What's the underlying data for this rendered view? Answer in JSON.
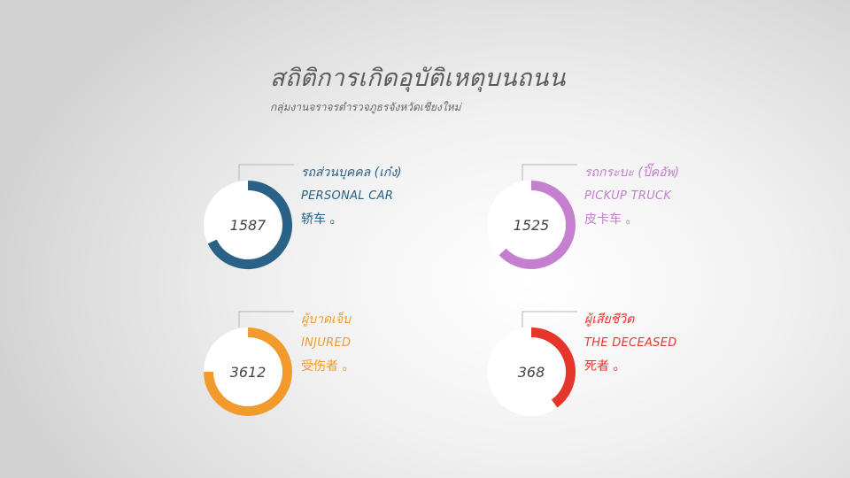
{
  "header": {
    "title": "สถิติการเกิดอุบัติเหตุบนถนน",
    "subtitle": "กลุ่มงานจราจรตำรวจภูธรจังหวัดเชียงใหม่"
  },
  "chart_data": {
    "type": "pie",
    "items": [
      {
        "value": 1587,
        "fraction": 0.68,
        "color": "#2a6186",
        "label_thai": "รถส่วนบุคคล (เก๋ง)",
        "label_en": "PERSONAL CAR",
        "label_cn": "轿车 。"
      },
      {
        "value": 1525,
        "fraction": 0.63,
        "color": "#c47fcf",
        "label_thai": "รถกระบะ (ปิ๊คอัพ)",
        "label_en": "PICKUP TRUCK",
        "label_cn": "皮卡车 。"
      },
      {
        "value": 3612,
        "fraction": 0.75,
        "color": "#f39a2c",
        "label_thai": "ผู้บาดเจ็บ",
        "label_en": "INJURED",
        "label_cn": "受伤者 。"
      },
      {
        "value": 368,
        "fraction": 0.4,
        "color": "#e6362b",
        "label_thai": "ผู้เสียชีวิต",
        "label_en": "THE DECEASED",
        "label_cn": "死者 。"
      }
    ]
  }
}
